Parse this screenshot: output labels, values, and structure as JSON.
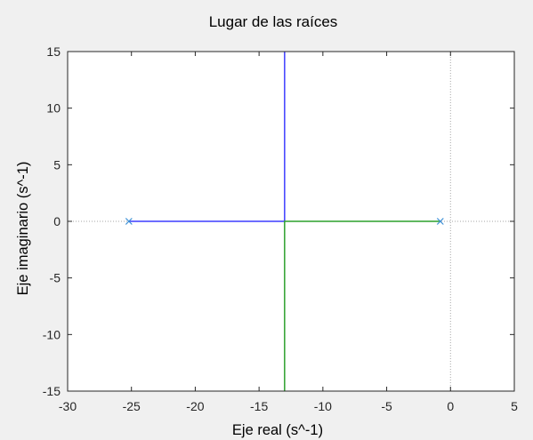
{
  "chart_data": {
    "type": "line",
    "title": "Lugar de las raíces",
    "xlabel": "Eje real (s^-1)",
    "ylabel": "Eje imaginario (s^-1)",
    "xlim": [
      -30,
      5
    ],
    "ylim": [
      -15,
      15
    ],
    "xticks": [
      "-30",
      "-25",
      "-20",
      "-15",
      "-10",
      "-5",
      "0",
      "5"
    ],
    "yticks": [
      "-15",
      "-10",
      "-5",
      "0",
      "5",
      "10",
      "15"
    ],
    "grid": false,
    "reference_lines": {
      "x": 0,
      "y": 0,
      "style": "dotted"
    },
    "series": [
      {
        "color": "#3d3dff",
        "points": [
          [
            -25.2,
            0
          ],
          [
            -13,
            0
          ],
          [
            -13,
            15
          ]
        ]
      },
      {
        "color": "#2ca02c",
        "points": [
          [
            -0.8,
            0
          ],
          [
            -13,
            0
          ],
          [
            -13,
            -15
          ]
        ]
      }
    ],
    "poles": [
      {
        "x": -25.2,
        "y": 0,
        "marker": "x",
        "color": "#3b8fd6"
      },
      {
        "x": -0.8,
        "y": 0,
        "marker": "x",
        "color": "#3b8fd6"
      }
    ]
  }
}
